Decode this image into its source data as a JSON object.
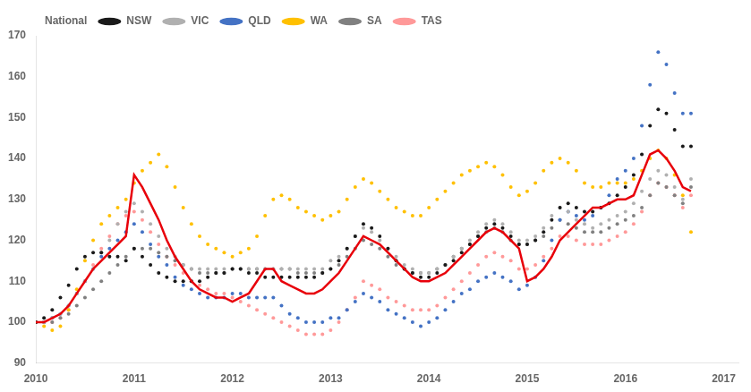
{
  "chart_data": {
    "type": "line",
    "x": [
      2010,
      2010.0833333333333,
      2010.1666666666667,
      2010.25,
      2010.3333333333333,
      2010.4166666666667,
      2010.5,
      2010.5833333333333,
      2010.6666666666667,
      2010.75,
      2010.8333333333333,
      2010.9166666666667,
      2011,
      2011.0833333333333,
      2011.1666666666667,
      2011.25,
      2011.3333333333333,
      2011.4166666666667,
      2011.5,
      2011.5833333333333,
      2011.6666666666667,
      2011.75,
      2011.8333333333333,
      2011.9166666666667,
      2012,
      2012.0833333333333,
      2012.1666666666667,
      2012.25,
      2012.3333333333333,
      2012.4166666666667,
      2012.5,
      2012.5833333333333,
      2012.6666666666667,
      2012.75,
      2012.8333333333333,
      2012.9166666666667,
      2013,
      2013.0833333333333,
      2013.1666666666667,
      2013.25,
      2013.3333333333333,
      2013.4166666666667,
      2013.5,
      2013.5833333333333,
      2013.6666666666667,
      2013.75,
      2013.8333333333333,
      2013.9166666666667,
      2014,
      2014.0833333333333,
      2014.1666666666667,
      2014.25,
      2014.3333333333333,
      2014.4166666666667,
      2014.5,
      2014.5833333333333,
      2014.6666666666667,
      2014.75,
      2014.8333333333333,
      2014.9166666666667,
      2015,
      2015.0833333333333,
      2015.1666666666667,
      2015.25,
      2015.3333333333333,
      2015.4166666666667,
      2015.5,
      2015.5833333333333,
      2015.6666666666667,
      2015.75,
      2015.8333333333333,
      2015.9166666666667,
      2016,
      2016.0833333333333,
      2016.1666666666667,
      2016.25,
      2016.3333333333333,
      2016.4166666666667,
      2016.5,
      2016.5833333333333,
      2016.6666666666667
    ],
    "series": [
      {
        "name": "National",
        "color": "#e8000a",
        "line_style": "solid",
        "values": [
          100,
          100,
          101,
          102,
          104,
          107,
          110,
          113,
          115,
          117,
          119,
          121,
          136,
          133,
          129,
          125,
          120,
          116,
          113,
          110,
          108,
          107,
          106,
          106,
          105,
          106,
          107,
          110,
          113,
          113,
          110,
          109,
          108,
          107,
          107,
          108,
          110,
          112,
          115,
          118,
          121,
          120,
          119,
          117,
          115,
          113,
          111,
          110,
          110,
          111,
          112,
          114,
          116,
          118,
          120,
          122,
          123,
          122,
          120,
          118,
          110,
          111,
          113,
          116,
          120,
          122,
          124,
          126,
          128,
          128,
          129,
          130,
          130,
          131,
          136,
          141,
          142,
          140,
          137,
          133,
          132
        ]
      },
      {
        "name": "NSW",
        "color": "#1a1a1a",
        "line_style": "none",
        "marker": "circle",
        "values": [
          100,
          101,
          103,
          106,
          109,
          113,
          116,
          117,
          117,
          116,
          116,
          115,
          118,
          116,
          114,
          112,
          111,
          110,
          110,
          110,
          110,
          111,
          112,
          112,
          113,
          113,
          112,
          112,
          111,
          111,
          111,
          111,
          111,
          111,
          111,
          112,
          113,
          115,
          118,
          121,
          124,
          123,
          121,
          118,
          115,
          113,
          112,
          111,
          111,
          112,
          114,
          115,
          117,
          119,
          121,
          123,
          124,
          123,
          121,
          119,
          119,
          120,
          122,
          125,
          128,
          129,
          128,
          127,
          127,
          128,
          129,
          131,
          133,
          136,
          141,
          148,
          152,
          151,
          147,
          143,
          143
        ]
      },
      {
        "name": "VIC",
        "color": "#b0b0b0",
        "line_style": "none",
        "marker": "circle",
        "values": [
          100,
          100,
          101,
          102,
          104,
          107,
          110,
          113,
          117,
          120,
          124,
          127,
          129,
          127,
          124,
          121,
          118,
          116,
          114,
          113,
          113,
          113,
          113,
          113,
          113,
          113,
          113,
          113,
          113,
          113,
          113,
          113,
          113,
          113,
          113,
          113,
          115,
          116,
          118,
          121,
          123,
          122,
          120,
          118,
          116,
          114,
          113,
          112,
          112,
          113,
          114,
          116,
          118,
          120,
          122,
          124,
          125,
          124,
          122,
          120,
          120,
          121,
          123,
          126,
          128,
          127,
          125,
          124,
          123,
          124,
          125,
          126,
          127,
          129,
          132,
          135,
          137,
          136,
          133,
          130,
          135
        ]
      },
      {
        "name": "QLD",
        "color": "#4472c4",
        "line_style": "none",
        "marker": "circle",
        "values": [
          100,
          100,
          101,
          102,
          104,
          107,
          110,
          113,
          116,
          118,
          120,
          122,
          124,
          122,
          119,
          116,
          114,
          111,
          109,
          108,
          107,
          106,
          106,
          106,
          107,
          107,
          106,
          106,
          106,
          106,
          104,
          102,
          101,
          100,
          100,
          100,
          101,
          101,
          103,
          105,
          107,
          106,
          105,
          103,
          102,
          101,
          100,
          99,
          100,
          101,
          103,
          105,
          107,
          108,
          110,
          111,
          112,
          111,
          110,
          108,
          109,
          111,
          115,
          120,
          125,
          127,
          126,
          125,
          126,
          128,
          131,
          135,
          137,
          140,
          148,
          158,
          166,
          163,
          156,
          151,
          151
        ]
      },
      {
        "name": "WA",
        "color": "#ffc000",
        "line_style": "none",
        "marker": "circle",
        "values": [
          100,
          99,
          98,
          99,
          103,
          108,
          115,
          120,
          124,
          126,
          128,
          130,
          134,
          137,
          139,
          141,
          138,
          133,
          128,
          124,
          121,
          119,
          118,
          117,
          116,
          117,
          118,
          121,
          126,
          130,
          131,
          130,
          128,
          127,
          126,
          125,
          126,
          127,
          130,
          133,
          135,
          134,
          132,
          130,
          128,
          127,
          126,
          126,
          128,
          130,
          132,
          134,
          136,
          137,
          138,
          139,
          138,
          136,
          133,
          131,
          132,
          134,
          137,
          139,
          140,
          139,
          137,
          134,
          133,
          133,
          134,
          134,
          134,
          135,
          137,
          140,
          142,
          140,
          136,
          131,
          122
        ]
      },
      {
        "name": "SA",
        "color": "#808080",
        "line_style": "none",
        "marker": "circle",
        "values": [
          100,
          100,
          100,
          101,
          102,
          104,
          106,
          108,
          110,
          112,
          114,
          116,
          118,
          118,
          118,
          117,
          116,
          115,
          114,
          113,
          112,
          112,
          112,
          112,
          113,
          113,
          113,
          113,
          113,
          113,
          113,
          113,
          112,
          112,
          112,
          112,
          113,
          114,
          116,
          118,
          120,
          119,
          118,
          116,
          114,
          113,
          112,
          112,
          112,
          113,
          114,
          116,
          118,
          119,
          121,
          122,
          123,
          122,
          120,
          119,
          119,
          120,
          121,
          123,
          125,
          124,
          123,
          122,
          122,
          122,
          123,
          124,
          125,
          126,
          128,
          131,
          134,
          133,
          131,
          129,
          133
        ]
      },
      {
        "name": "TAS",
        "color": "#ff9999",
        "line_style": "none",
        "marker": "circle",
        "values": [
          100,
          100,
          100,
          101,
          103,
          107,
          110,
          114,
          118,
          121,
          124,
          126,
          127,
          125,
          122,
          119,
          116,
          114,
          112,
          110,
          109,
          108,
          107,
          107,
          106,
          105,
          104,
          103,
          102,
          101,
          100,
          99,
          98,
          97,
          97,
          97,
          98,
          100,
          103,
          106,
          110,
          109,
          108,
          106,
          105,
          104,
          103,
          103,
          103,
          104,
          106,
          108,
          110,
          112,
          114,
          116,
          117,
          116,
          115,
          113,
          113,
          114,
          116,
          118,
          121,
          121,
          120,
          119,
          119,
          119,
          120,
          121,
          122,
          124,
          127,
          131,
          134,
          133,
          131,
          128,
          131
        ]
      }
    ],
    "xlim": [
      2010,
      2017.15
    ],
    "xticks": [
      2010,
      2011,
      2012,
      2013,
      2014,
      2015,
      2016,
      2017
    ],
    "ylim": [
      90,
      170
    ],
    "yticks": [
      90,
      100,
      110,
      120,
      130,
      140,
      150,
      160,
      170
    ],
    "grid": false,
    "legend": "upper left"
  }
}
